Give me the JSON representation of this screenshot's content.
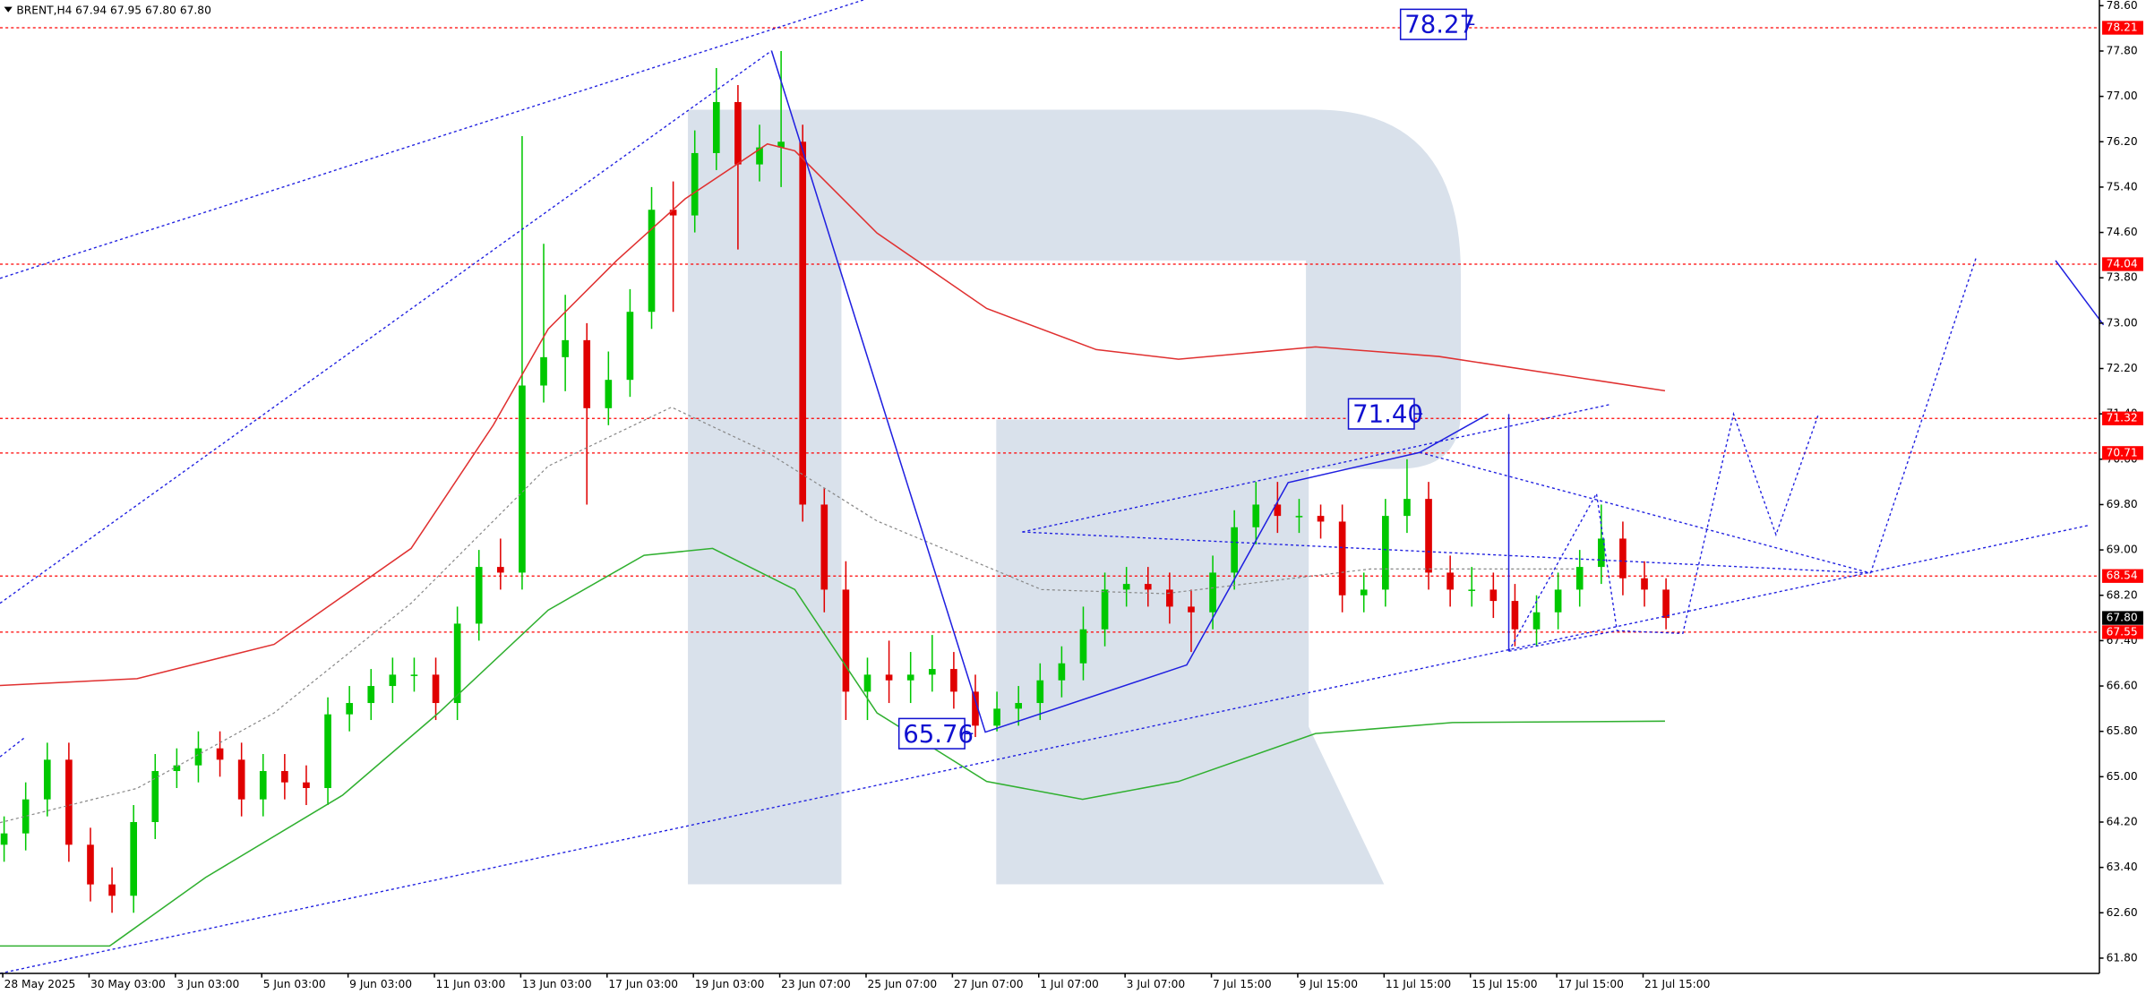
{
  "chart_data": {
    "type": "candlestick",
    "title": "BRENT,H4",
    "subtitle": "67.94 67.95 67.80 67.80",
    "x_labels": [
      "28 May 2025",
      "30 May 03:00",
      "3 Jun 03:00",
      "5 Jun 03:00",
      "9 Jun 03:00",
      "11 Jun 03:00",
      "13 Jun 03:00",
      "17 Jun 03:00",
      "19 Jun 03:00",
      "23 Jun 07:00",
      "25 Jun 07:00",
      "27 Jun 07:00",
      "1 Jul 07:00",
      "3 Jul 07:00",
      "7 Jul 15:00",
      "9 Jul 15:00",
      "11 Jul 15:00",
      "15 Jul 15:00",
      "17 Jul 15:00",
      "21 Jul 15:00"
    ],
    "open": [
      63.8,
      64.0,
      64.6,
      65.3,
      63.8,
      63.1,
      62.9,
      64.2,
      65.1,
      65.2,
      65.5,
      65.3,
      64.6,
      65.1,
      64.9,
      64.8,
      66.1,
      66.3,
      66.6,
      66.8,
      66.8,
      66.3,
      67.7,
      68.7,
      68.6,
      71.9,
      72.4,
      72.7,
      71.5,
      72.0,
      73.2,
      75.0,
      74.9,
      76.0,
      76.9,
      75.8,
      76.1,
      76.2,
      69.8,
      68.3,
      66.5,
      66.8,
      66.7,
      66.8,
      66.9,
      66.5,
      65.9,
      66.2,
      66.3,
      66.7,
      67.0,
      67.6,
      68.3,
      68.4,
      68.3,
      68.0,
      67.9,
      68.6,
      69.4,
      69.8,
      69.6,
      69.6,
      69.5,
      68.2,
      68.3,
      69.6,
      69.9,
      68.6,
      68.3,
      68.3,
      68.1,
      67.6,
      67.9,
      68.3,
      68.7,
      69.2,
      68.5,
      68.3
    ],
    "high": [
      64.3,
      64.9,
      65.6,
      65.6,
      64.1,
      63.4,
      64.5,
      65.4,
      65.5,
      65.8,
      65.8,
      65.6,
      65.4,
      65.4,
      65.2,
      66.4,
      66.6,
      66.9,
      67.1,
      67.1,
      67.1,
      68.0,
      69.0,
      69.2,
      76.3,
      74.4,
      73.5,
      73.0,
      72.5,
      73.6,
      75.4,
      75.5,
      76.4,
      77.5,
      77.2,
      76.5,
      77.8,
      76.5,
      70.1,
      68.8,
      67.1,
      67.4,
      67.2,
      67.5,
      67.2,
      66.8,
      66.5,
      66.6,
      67.0,
      67.3,
      68.0,
      68.6,
      68.7,
      68.7,
      68.6,
      68.3,
      68.9,
      69.7,
      70.2,
      70.2,
      69.9,
      69.8,
      69.8,
      68.6,
      69.9,
      70.6,
      70.2,
      68.9,
      68.7,
      68.6,
      68.4,
      68.2,
      68.6,
      69.0,
      69.8,
      69.5,
      68.8,
      68.5
    ],
    "low": [
      63.5,
      63.7,
      64.3,
      63.5,
      62.8,
      62.6,
      62.6,
      63.9,
      64.8,
      64.9,
      65.0,
      64.3,
      64.3,
      64.6,
      64.5,
      64.5,
      65.8,
      66.0,
      66.3,
      66.5,
      66.0,
      66.0,
      67.4,
      68.3,
      68.3,
      71.6,
      71.8,
      69.8,
      71.2,
      71.7,
      72.9,
      73.2,
      74.6,
      75.7,
      74.3,
      75.5,
      75.4,
      69.5,
      67.9,
      66.0,
      66.0,
      66.3,
      66.3,
      66.5,
      66.2,
      65.7,
      65.8,
      65.9,
      66.0,
      66.4,
      66.7,
      67.3,
      68.0,
      68.0,
      67.7,
      67.2,
      67.6,
      68.3,
      69.1,
      69.3,
      69.3,
      69.2,
      67.9,
      67.9,
      68.0,
      69.3,
      68.3,
      68.0,
      68.0,
      67.8,
      67.3,
      67.3,
      67.6,
      68.0,
      68.4,
      68.2,
      68.0,
      67.6
    ],
    "close": [
      64.0,
      64.6,
      65.3,
      63.8,
      63.1,
      62.9,
      64.2,
      65.1,
      65.2,
      65.5,
      65.3,
      64.6,
      65.1,
      64.9,
      64.8,
      66.1,
      66.3,
      66.6,
      66.8,
      66.8,
      66.3,
      67.7,
      68.7,
      68.6,
      71.9,
      72.4,
      72.7,
      71.5,
      72.0,
      73.2,
      75.0,
      74.9,
      76.0,
      76.9,
      75.8,
      76.1,
      76.2,
      69.8,
      68.3,
      66.5,
      66.8,
      66.7,
      66.8,
      66.9,
      66.5,
      65.9,
      66.2,
      66.3,
      66.7,
      67.0,
      67.6,
      68.3,
      68.4,
      68.3,
      68.0,
      67.9,
      68.6,
      69.4,
      69.8,
      69.6,
      69.6,
      69.5,
      68.2,
      68.3,
      69.6,
      69.9,
      68.6,
      68.3,
      68.3,
      68.1,
      67.6,
      67.9,
      68.3,
      68.7,
      69.2,
      68.5,
      68.3,
      67.8
    ],
    "up_color": "#00c800",
    "down_color": "#e00000",
    "level_color": "#ff0000",
    "ylim": [
      61.53,
      78.7
    ],
    "yticks": [
      {
        "value": 78.6,
        "label": "78.60"
      },
      {
        "value": 77.8,
        "label": "77.80"
      },
      {
        "value": 77,
        "label": "77.00"
      },
      {
        "value": 76.2,
        "label": "76.20"
      },
      {
        "value": 75.4,
        "label": "75.40"
      },
      {
        "value": 74.6,
        "label": "74.60"
      },
      {
        "value": 73.8,
        "label": "73.80"
      },
      {
        "value": 73,
        "label": "73.00"
      },
      {
        "value": 72.2,
        "label": "72.20"
      },
      {
        "value": 71.4,
        "label": "71.40"
      },
      {
        "value": 70.6,
        "label": "70.60"
      },
      {
        "value": 69.8,
        "label": "69.80"
      },
      {
        "value": 69,
        "label": "69.00"
      },
      {
        "value": 68.2,
        "label": "68.20"
      },
      {
        "value": 67.4,
        "label": "67.40"
      },
      {
        "value": 66.6,
        "label": "66.60"
      },
      {
        "value": 65.8,
        "label": "65.80"
      },
      {
        "value": 65,
        "label": "65.00"
      },
      {
        "value": 64.2,
        "label": "64.20"
      },
      {
        "value": 63.4,
        "label": "63.40"
      },
      {
        "value": 62.6,
        "label": "62.60"
      },
      {
        "value": 61.8,
        "label": "61.80"
      }
    ],
    "levels": [
      78.21,
      74.04,
      71.32,
      70.71,
      68.54,
      67.55
    ],
    "last_price": {
      "value": 67.8,
      "label": "67.80"
    },
    "annotations": [
      {
        "value": 78.27,
        "label": "78.27"
      },
      {
        "value": 71.4,
        "label": "71.40"
      },
      {
        "value": 65.76,
        "label": "65.76"
      }
    ]
  }
}
